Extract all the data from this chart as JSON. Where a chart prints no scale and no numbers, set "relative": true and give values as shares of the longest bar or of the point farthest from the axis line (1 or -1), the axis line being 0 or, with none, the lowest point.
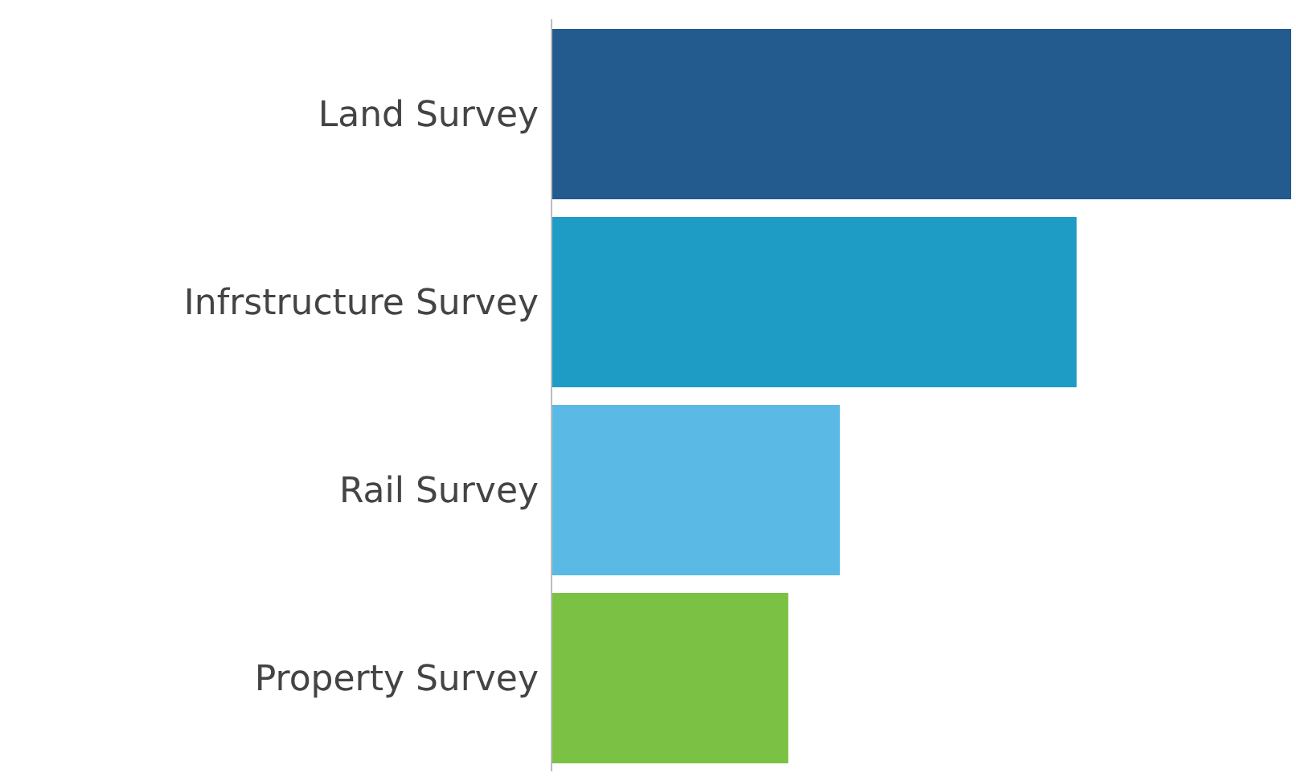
{
  "chart_data": {
    "type": "bar",
    "orientation": "horizontal",
    "relative": true,
    "categories": [
      "Land Survey",
      "Infrstructure Survey",
      "Rail Survey",
      "Property Survey"
    ],
    "values": [
      1,
      0.71,
      0.39,
      0.32
    ],
    "colors": [
      "#235b8e",
      "#1f9cc6",
      "#5bb9e5",
      "#7bc143"
    ],
    "grid": false,
    "legend": false
  }
}
